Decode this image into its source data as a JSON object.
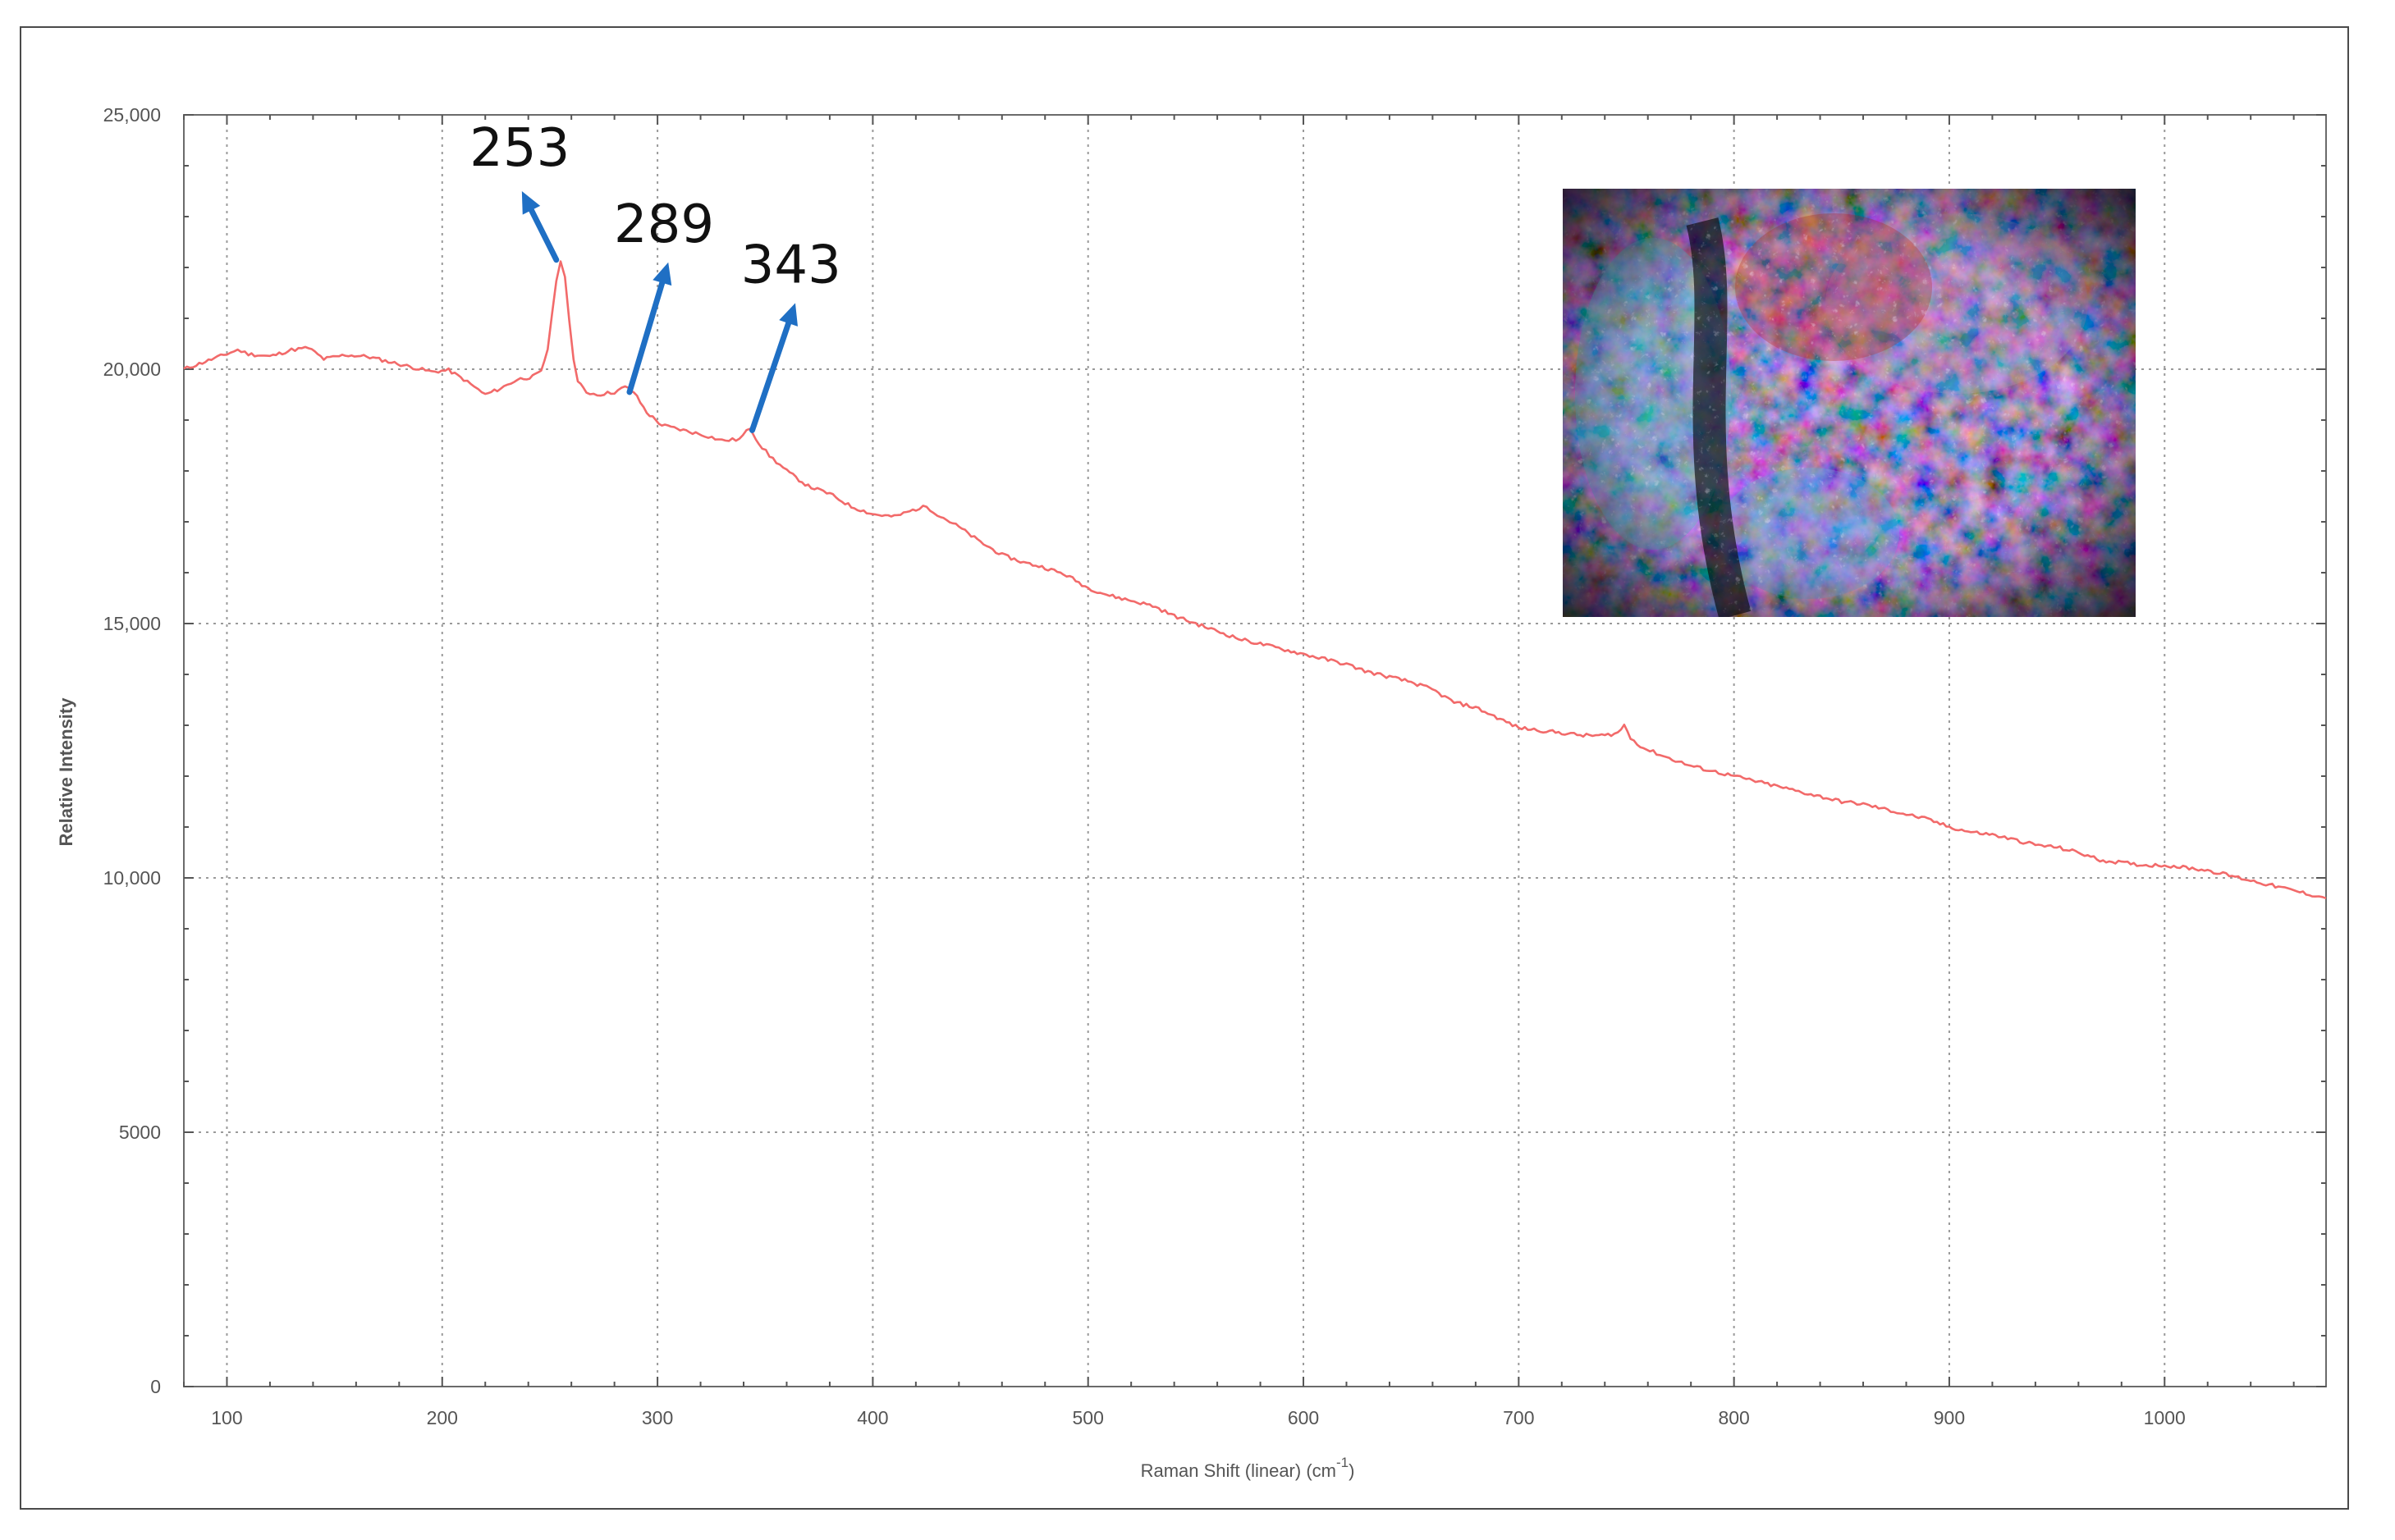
{
  "chart_data": {
    "type": "line",
    "title": "",
    "xlabel": "Raman Shift (linear) (cm",
    "xlabel_unit_sup": "-1",
    "xlabel_close": ")",
    "ylabel": "Relative Intensity",
    "xlim": [
      80,
      1075
    ],
    "ylim": [
      0,
      25000
    ],
    "x_ticks": [
      100,
      200,
      300,
      400,
      500,
      600,
      700,
      800,
      900,
      1000
    ],
    "x_tick_labels": [
      "100",
      "200",
      "300",
      "400",
      "500",
      "600",
      "700",
      "800",
      "900",
      "1000"
    ],
    "y_ticks": [
      0,
      5000,
      10000,
      15000,
      20000,
      25000
    ],
    "y_tick_labels": [
      "0",
      "5000",
      "10,000",
      "15,000",
      "20,000",
      "25,000"
    ],
    "grid": true,
    "series": [
      {
        "color": "#f26a6a",
        "points": [
          [
            80,
            20000
          ],
          [
            90,
            20150
          ],
          [
            100,
            20300
          ],
          [
            105,
            20380
          ],
          [
            110,
            20300
          ],
          [
            120,
            20250
          ],
          [
            130,
            20380
          ],
          [
            138,
            20420
          ],
          [
            145,
            20200
          ],
          [
            155,
            20280
          ],
          [
            165,
            20250
          ],
          [
            175,
            20150
          ],
          [
            185,
            20050
          ],
          [
            195,
            19950
          ],
          [
            203,
            19980
          ],
          [
            210,
            19800
          ],
          [
            215,
            19650
          ],
          [
            220,
            19500
          ],
          [
            227,
            19620
          ],
          [
            235,
            19800
          ],
          [
            242,
            19850
          ],
          [
            246,
            19950
          ],
          [
            249,
            20400
          ],
          [
            251,
            21100
          ],
          [
            253,
            21700
          ],
          [
            255,
            22150
          ],
          [
            257,
            21800
          ],
          [
            259,
            21000
          ],
          [
            261,
            20200
          ],
          [
            263,
            19750
          ],
          [
            267,
            19550
          ],
          [
            272,
            19500
          ],
          [
            280,
            19550
          ],
          [
            285,
            19650
          ],
          [
            289,
            19550
          ],
          [
            295,
            19150
          ],
          [
            302,
            18900
          ],
          [
            312,
            18800
          ],
          [
            322,
            18700
          ],
          [
            330,
            18600
          ],
          [
            338,
            18620
          ],
          [
            343,
            18850
          ],
          [
            347,
            18550
          ],
          [
            352,
            18300
          ],
          [
            360,
            18000
          ],
          [
            370,
            17700
          ],
          [
            380,
            17550
          ],
          [
            390,
            17300
          ],
          [
            400,
            17150
          ],
          [
            410,
            17100
          ],
          [
            420,
            17250
          ],
          [
            425,
            17300
          ],
          [
            430,
            17150
          ],
          [
            440,
            16900
          ],
          [
            450,
            16600
          ],
          [
            460,
            16350
          ],
          [
            470,
            16200
          ],
          [
            480,
            16100
          ],
          [
            490,
            15950
          ],
          [
            500,
            15700
          ],
          [
            510,
            15550
          ],
          [
            520,
            15450
          ],
          [
            530,
            15350
          ],
          [
            540,
            15150
          ],
          [
            550,
            15000
          ],
          [
            560,
            14850
          ],
          [
            570,
            14700
          ],
          [
            580,
            14600
          ],
          [
            590,
            14500
          ],
          [
            600,
            14400
          ],
          [
            610,
            14300
          ],
          [
            620,
            14200
          ],
          [
            630,
            14050
          ],
          [
            640,
            13950
          ],
          [
            650,
            13850
          ],
          [
            660,
            13700
          ],
          [
            670,
            13450
          ],
          [
            680,
            13350
          ],
          [
            690,
            13150
          ],
          [
            700,
            12950
          ],
          [
            710,
            12900
          ],
          [
            720,
            12850
          ],
          [
            730,
            12800
          ],
          [
            740,
            12800
          ],
          [
            746,
            12850
          ],
          [
            749,
            13000
          ],
          [
            752,
            12750
          ],
          [
            758,
            12550
          ],
          [
            770,
            12350
          ],
          [
            780,
            12200
          ],
          [
            790,
            12100
          ],
          [
            800,
            12000
          ],
          [
            810,
            11900
          ],
          [
            820,
            11800
          ],
          [
            830,
            11700
          ],
          [
            840,
            11600
          ],
          [
            850,
            11500
          ],
          [
            860,
            11450
          ],
          [
            870,
            11350
          ],
          [
            880,
            11250
          ],
          [
            890,
            11150
          ],
          [
            900,
            11000
          ],
          [
            910,
            10900
          ],
          [
            920,
            10850
          ],
          [
            930,
            10750
          ],
          [
            940,
            10650
          ],
          [
            950,
            10600
          ],
          [
            960,
            10500
          ],
          [
            970,
            10350
          ],
          [
            980,
            10300
          ],
          [
            990,
            10250
          ],
          [
            1000,
            10250
          ],
          [
            1010,
            10200
          ],
          [
            1020,
            10150
          ],
          [
            1030,
            10050
          ],
          [
            1040,
            9950
          ],
          [
            1050,
            9850
          ],
          [
            1060,
            9750
          ],
          [
            1070,
            9650
          ],
          [
            1075,
            9600
          ]
        ]
      }
    ],
    "annotations": [
      {
        "text": "253",
        "x": 253,
        "y": 22150,
        "arrow_to": [
          237,
          23500
        ],
        "label_at": [
          236,
          24000
        ]
      },
      {
        "text": "289",
        "x": 287,
        "y": 19550,
        "arrow_to": [
          305,
          22100
        ],
        "label_at": [
          303,
          22500
        ]
      },
      {
        "text": "343",
        "x": 344,
        "y": 18800,
        "arrow_to": [
          364,
          21300
        ],
        "label_at": [
          362,
          21700
        ]
      }
    ],
    "colors": {
      "line": "#f26a6a",
      "arrow": "#1f6fc4",
      "grid": "#9a9a9a",
      "axis_text": "#555555"
    },
    "inset_image": "micrograph of mineral sample (blue, red and black textures)"
  }
}
